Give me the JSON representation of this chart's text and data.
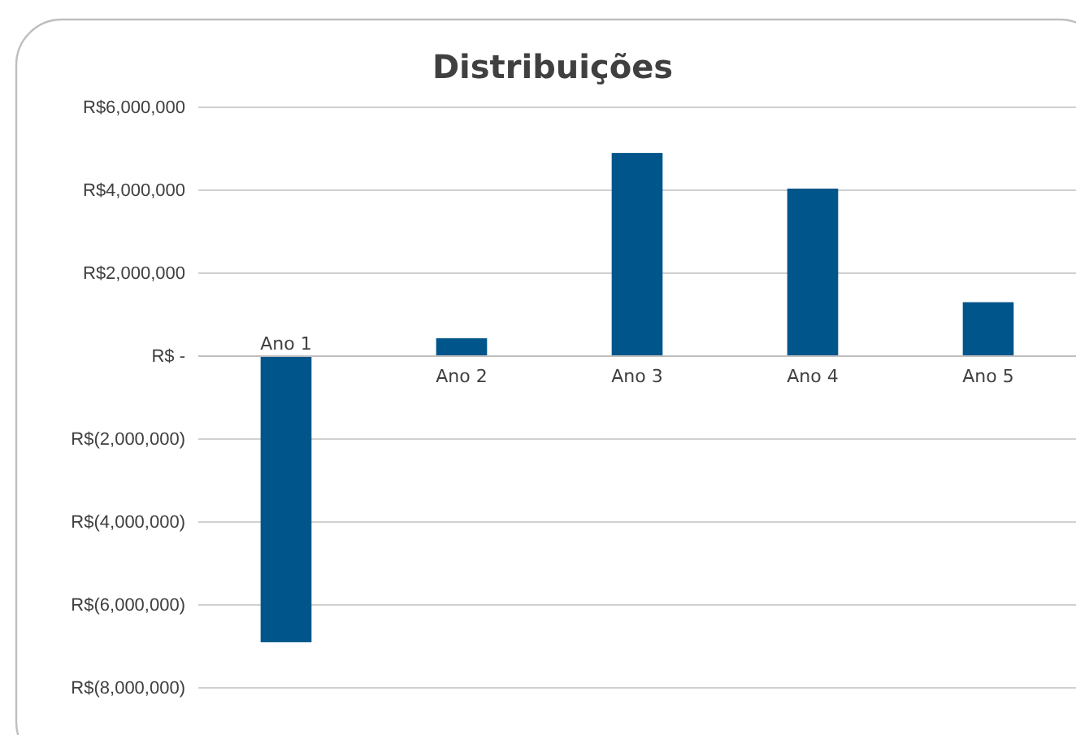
{
  "chart_data": {
    "type": "bar",
    "title": "Distribuições",
    "categories": [
      "Ano 1",
      "Ano 2",
      "Ano 3",
      "Ano 4",
      "Ano 5"
    ],
    "values": [
      -6900000,
      430000,
      4900000,
      4040000,
      1300000
    ],
    "color": "#00558a",
    "ylim": [
      -8000000,
      6000000
    ],
    "yticks": [
      {
        "value": -8000000,
        "label": "R$(8,000,000)"
      },
      {
        "value": -6000000,
        "label": "R$(6,000,000)"
      },
      {
        "value": -4000000,
        "label": "R$(4,000,000)"
      },
      {
        "value": -2000000,
        "label": "R$(2,000,000)"
      },
      {
        "value": 0,
        "label": "R$ -"
      },
      {
        "value": 2000000,
        "label": "R$2,000,000"
      },
      {
        "value": 4000000,
        "label": "R$4,000,000"
      },
      {
        "value": 6000000,
        "label": "R$6,000,000"
      }
    ],
    "grid": "y"
  }
}
